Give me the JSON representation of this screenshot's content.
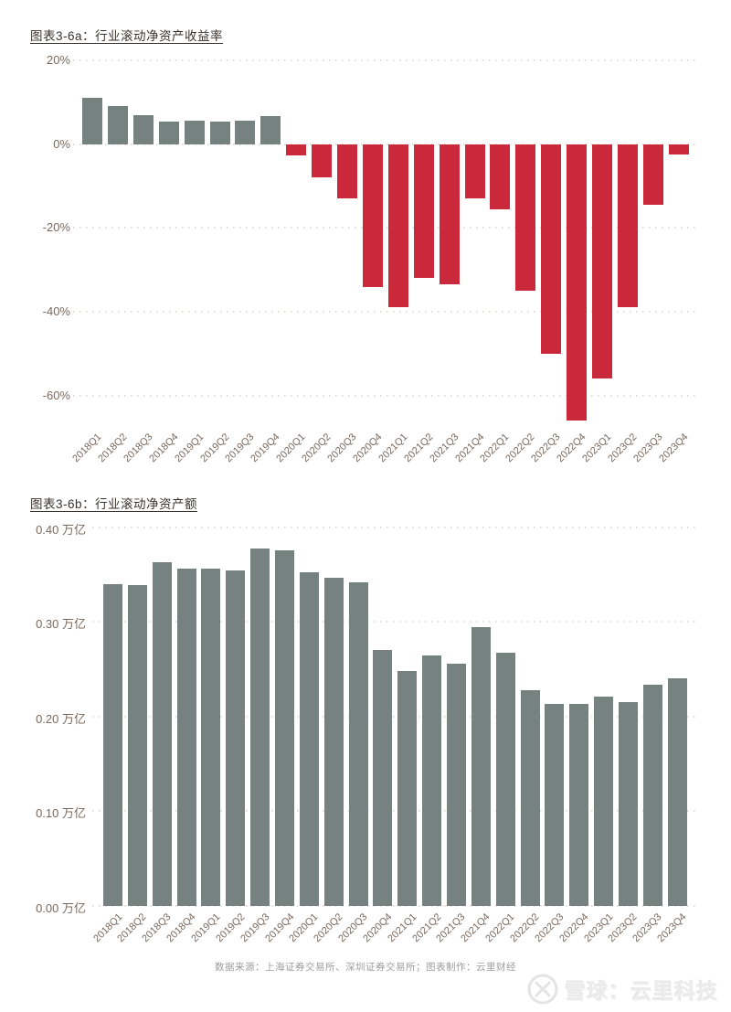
{
  "footer": {
    "text": "数据来源：上海证券交易所、深圳证券交易所；图表制作：云里财经"
  },
  "watermark": {
    "icon": "xueqiu-logo",
    "text": "雪球：云里科技",
    "color": "#ebebeb"
  },
  "colors": {
    "bar_gray": "#76827f",
    "bar_red": "#c9293b",
    "tick_text": "#7a695e",
    "grid": "#e6dcd7",
    "title_text": "#39312b"
  },
  "chart_data": [
    {
      "type": "bar",
      "title": "图表3-6a：行业滚动净资产收益率",
      "categories": [
        "2018Q1",
        "2018Q2",
        "2018Q3",
        "2018Q4",
        "2019Q1",
        "2019Q2",
        "2019Q3",
        "2019Q4",
        "2020Q1",
        "2020Q2",
        "2020Q3",
        "2020Q4",
        "2021Q1",
        "2021Q2",
        "2021Q3",
        "2021Q4",
        "2022Q1",
        "2022Q2",
        "2022Q3",
        "2022Q4",
        "2023Q1",
        "2023Q2",
        "2023Q3",
        "2023Q4"
      ],
      "values": [
        11,
        9,
        7,
        5.5,
        5.7,
        5.4,
        5.6,
        6.6,
        -2.8,
        -8,
        -13,
        -34,
        -39,
        -32,
        -33.5,
        -13,
        -15.5,
        -35,
        -50,
        -66,
        -56,
        -39,
        -14.5,
        -2.5
      ],
      "unit": "%",
      "ytick_labels": [
        "20%",
        "0%",
        "-20%",
        "-40%",
        "-60%"
      ],
      "ytick_values": [
        20,
        0,
        -20,
        -40,
        -60
      ],
      "ylim": [
        -70,
        20
      ],
      "xlabel": "",
      "ylabel": "",
      "grid": "horizontal-dotted",
      "legend": "none",
      "positive_color": "#76827f",
      "negative_color": "#c9293b"
    },
    {
      "type": "bar",
      "title": "图表3-6b：行业滚动净资产额",
      "categories": [
        "2018Q1",
        "2018Q2",
        "2018Q3",
        "2018Q4",
        "2019Q1",
        "2019Q2",
        "2019Q3",
        "2019Q4",
        "2020Q1",
        "2020Q2",
        "2020Q3",
        "2020Q4",
        "2021Q1",
        "2021Q2",
        "2021Q3",
        "2021Q4",
        "2022Q1",
        "2022Q2",
        "2022Q3",
        "2022Q4",
        "2023Q1",
        "2023Q2",
        "2023Q3",
        "2023Q4"
      ],
      "values": [
        0.34,
        0.339,
        0.363,
        0.357,
        0.357,
        0.355,
        0.378,
        0.376,
        0.353,
        0.347,
        0.342,
        0.27,
        0.248,
        0.265,
        0.256,
        0.295,
        0.268,
        0.228,
        0.213,
        0.213,
        0.221,
        0.215,
        0.234,
        0.24
      ],
      "unit": "万亿",
      "ytick_labels": [
        "0.40 万亿",
        "0.30 万亿",
        "0.20 万亿",
        "0.10 万亿",
        "0.00 万亿"
      ],
      "ytick_values": [
        0.4,
        0.3,
        0.2,
        0.1,
        0.0
      ],
      "ylim": [
        0,
        0.4
      ],
      "xlabel": "",
      "ylabel": "",
      "grid": "horizontal-dotted",
      "legend": "none",
      "positive_color": "#76827f",
      "negative_color": "#76827f"
    }
  ]
}
